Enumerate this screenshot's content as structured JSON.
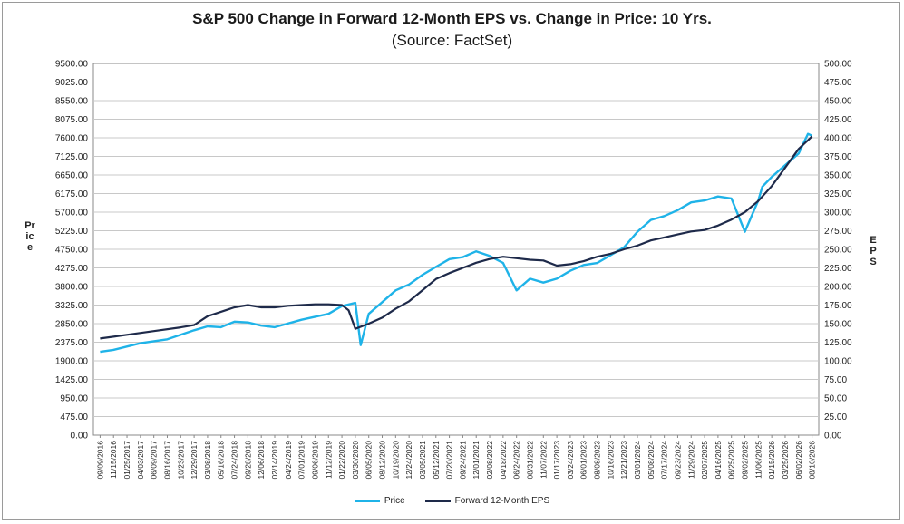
{
  "chart_data": {
    "type": "line",
    "title": "S&P 500 Change in Forward 12-Month EPS vs. Change in Price: 10 Yrs.",
    "subtitle": "(Source: FactSet)",
    "ylabel_left": "Price",
    "ylabel_right": "EPS",
    "ylim_left": [
      0,
      9500
    ],
    "ylim_right": [
      0,
      500
    ],
    "y_ticks_left": [
      "0.00",
      "475.00",
      "950.00",
      "1425.00",
      "1900.00",
      "2375.00",
      "2850.00",
      "3325.00",
      "3800.00",
      "4275.00",
      "4750.00",
      "5225.00",
      "5700.00",
      "6175.00",
      "6650.00",
      "7125.00",
      "7600.00",
      "8075.00",
      "8550.00",
      "9025.00",
      "9500.00"
    ],
    "y_ticks_right": [
      "0.00",
      "25.00",
      "50.00",
      "75.00",
      "100.00",
      "125.00",
      "150.00",
      "175.00",
      "200.00",
      "225.00",
      "250.00",
      "275.00",
      "300.00",
      "325.00",
      "350.00",
      "375.00",
      "400.00",
      "425.00",
      "450.00",
      "475.00",
      "500.00"
    ],
    "x_ticks": [
      "09/09/2016",
      "11/15/2016",
      "01/25/2017",
      "04/03/2017",
      "06/09/2017",
      "08/16/2017",
      "10/23/2017",
      "12/29/2017",
      "03/08/2018",
      "05/16/2018",
      "07/24/2018",
      "09/28/2018",
      "12/06/2018",
      "02/14/2019",
      "04/24/2019",
      "07/01/2019",
      "09/06/2019",
      "11/12/2019",
      "01/22/2020",
      "03/30/2020",
      "06/05/2020",
      "08/12/2020",
      "10/19/2020",
      "12/24/2020",
      "03/05/2021",
      "05/12/2021",
      "07/20/2021",
      "09/24/2021",
      "12/01/2021",
      "02/08/2022",
      "04/18/2022",
      "06/24/2022",
      "08/31/2022",
      "11/07/2022",
      "01/17/2023",
      "03/24/2023",
      "06/01/2023",
      "08/08/2023",
      "10/16/2023",
      "12/21/2023",
      "03/01/2024",
      "05/08/2024",
      "07/17/2024",
      "09/23/2024",
      "11/29/2024",
      "02/07/2025",
      "04/16/2025",
      "06/25/2025",
      "09/02/2025",
      "11/06/2025",
      "01/15/2026",
      "03/25/2026",
      "06/02/2026",
      "08/10/2026"
    ],
    "grid": true,
    "legend_position": "bottom",
    "series": [
      {
        "name": "Price",
        "color": "#1fb3e8",
        "axis": "left",
        "x_index": [
          0,
          1,
          3,
          5,
          7,
          8,
          9,
          10,
          11,
          12,
          13,
          15,
          17,
          18,
          19,
          19.4,
          20,
          21,
          22,
          23,
          24,
          25,
          26,
          27,
          28,
          29,
          30,
          31,
          32,
          33,
          34,
          35,
          36,
          37,
          38,
          39,
          40,
          41,
          42,
          43,
          44,
          45,
          46,
          47,
          48,
          49,
          49.3,
          50,
          51,
          52,
          52.7,
          53
        ],
        "values": [
          2130,
          2180,
          2350,
          2450,
          2680,
          2780,
          2760,
          2900,
          2880,
          2800,
          2760,
          2950,
          3100,
          3300,
          3380,
          2300,
          3100,
          3400,
          3700,
          3850,
          4100,
          4300,
          4500,
          4550,
          4700,
          4580,
          4400,
          3700,
          4000,
          3900,
          4000,
          4200,
          4350,
          4400,
          4600,
          4800,
          5200,
          5500,
          5600,
          5750,
          5950,
          6000,
          6100,
          6050,
          5200,
          6000,
          6350,
          6600,
          6900,
          7200,
          7700,
          7650
        ]
      },
      {
        "name": "Forward 12-Month EPS",
        "color": "#1e2a4a",
        "axis": "right",
        "x_index": [
          0,
          2,
          4,
          6,
          7,
          8,
          9,
          10,
          11,
          12,
          13,
          14,
          15,
          16,
          17,
          18,
          18.5,
          19,
          20,
          21,
          22,
          23,
          24,
          25,
          26,
          27,
          28,
          29,
          30,
          31,
          32,
          33,
          34,
          35,
          36,
          37,
          38,
          39,
          40,
          41,
          42,
          43,
          44,
          45,
          46,
          47,
          48,
          49,
          50,
          51,
          52,
          53
        ],
        "values": [
          130,
          135,
          140,
          145,
          148,
          160,
          166,
          172,
          175,
          172,
          172,
          174,
          175,
          176,
          176,
          175,
          168,
          143,
          150,
          158,
          170,
          180,
          195,
          210,
          218,
          225,
          232,
          237,
          240,
          238,
          236,
          235,
          228,
          230,
          234,
          240,
          244,
          250,
          255,
          262,
          266,
          270,
          274,
          276,
          282,
          290,
          300,
          315,
          335,
          360,
          385,
          402
        ]
      }
    ]
  }
}
